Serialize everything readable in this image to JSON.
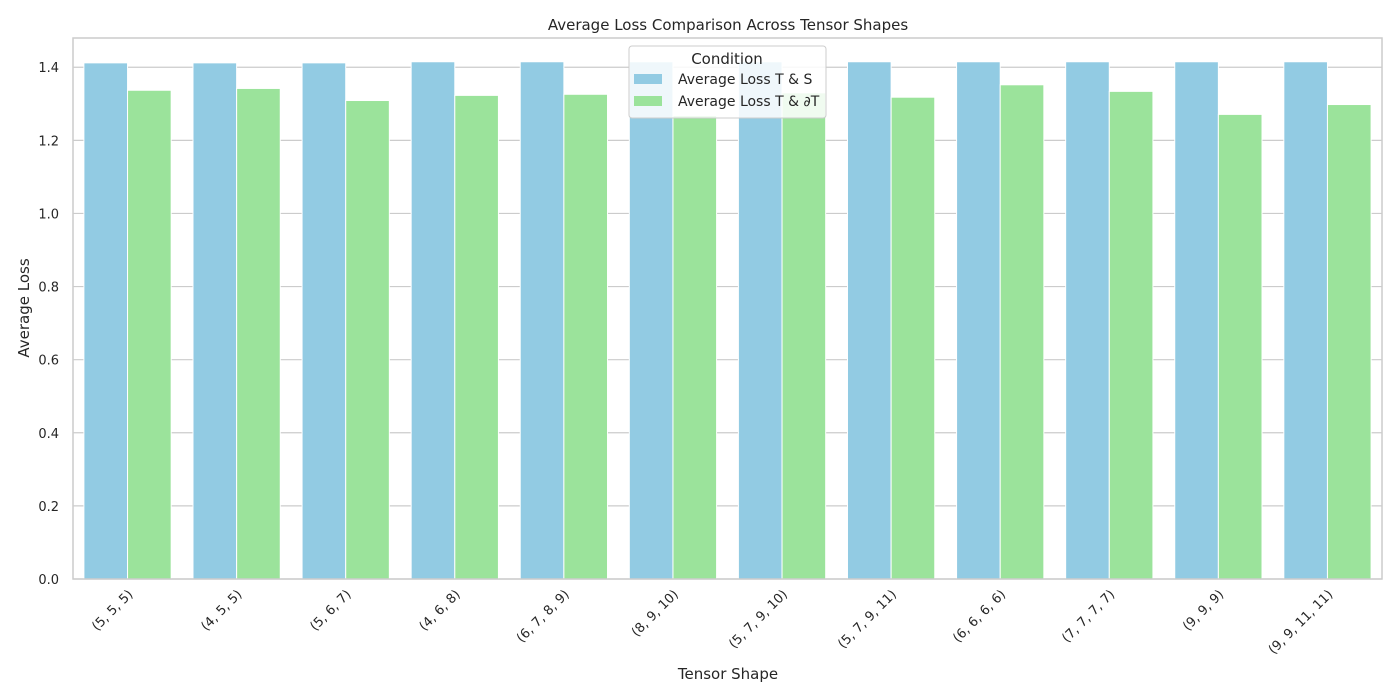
{
  "chart_data": {
    "type": "bar",
    "title": "Average Loss Comparison Across Tensor Shapes",
    "xlabel": "Tensor Shape",
    "ylabel": "Average Loss",
    "ylim": [
      0,
      1.48
    ],
    "yticks": [
      "0.0",
      "0.2",
      "0.4",
      "0.6",
      "0.8",
      "1.0",
      "1.2",
      "1.4"
    ],
    "grid": "horizontal",
    "legend_placement": "top-center",
    "legend_title": "Condition",
    "categories": [
      "(5, 5, 5)",
      "(4, 5, 5)",
      "(5, 6, 7)",
      "(4, 6, 8)",
      "(6, 7, 8, 9)",
      "(8, 9, 10)",
      "(5, 7, 9, 10)",
      "(5, 7, 9, 11)",
      "(6, 6, 6, 6)",
      "(7, 7, 7, 7)",
      "(9, 9, 9)",
      "(9, 9, 11, 11)"
    ],
    "series": [
      {
        "name": "Average Loss T & S",
        "color": "#92cbe3",
        "values": [
          1.412,
          1.412,
          1.412,
          1.415,
          1.415,
          1.415,
          1.415,
          1.415,
          1.415,
          1.415,
          1.415,
          1.415
        ]
      },
      {
        "name": "Average Loss T & ∂T",
        "color": "#9be39b",
        "values": [
          1.337,
          1.342,
          1.309,
          1.323,
          1.326,
          1.268,
          1.33,
          1.318,
          1.352,
          1.334,
          1.271,
          1.298
        ]
      }
    ]
  }
}
